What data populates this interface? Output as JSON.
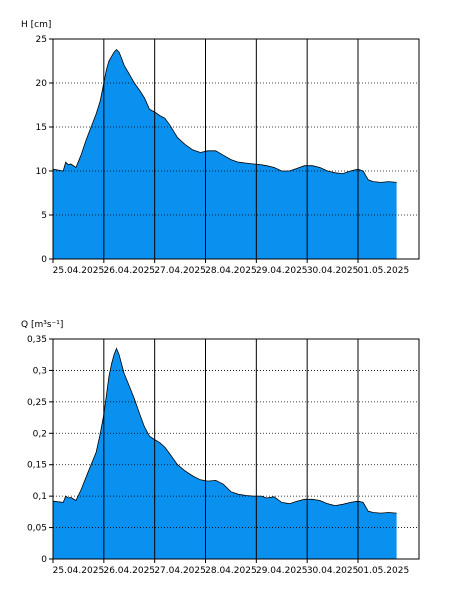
{
  "colors": {
    "fill": "#0a91f0",
    "stroke": "#000000",
    "grid_dotted": "#000000",
    "day_line": "#000000",
    "background": "#ffffff"
  },
  "chart_data": [
    {
      "type": "area",
      "ylabel": "H [cm]",
      "ylim": [
        0,
        25
      ],
      "yticks": [
        0,
        5,
        10,
        15,
        20,
        25
      ],
      "ytick_labels": [
        "0",
        "5",
        "10",
        "15",
        "20",
        "25"
      ],
      "xlim": [
        0,
        7.2
      ],
      "xtick_labels": [
        "25.04.2025",
        "26.04.2025",
        "27.04.2025",
        "28.04.2025",
        "29.04.2025",
        "30.04.2025",
        "01.05.2025"
      ],
      "grid": "dotted horizontal, solid vertical at day boundaries",
      "series": [
        {
          "x": [
            0.0,
            0.2,
            0.25,
            0.3,
            0.35,
            0.45,
            0.55,
            0.65,
            0.75,
            0.85,
            0.93,
            1.0,
            1.05,
            1.1,
            1.15,
            1.2,
            1.25,
            1.3,
            1.35,
            1.4,
            1.5,
            1.6,
            1.7,
            1.8,
            1.9,
            2.0,
            2.1,
            2.2,
            2.3,
            2.45,
            2.6,
            2.75,
            2.9,
            3.05,
            3.2,
            3.35,
            3.5,
            3.65,
            3.8,
            3.95,
            4.1,
            4.2,
            4.35,
            4.5,
            4.65,
            4.8,
            4.95,
            5.1,
            5.25,
            5.4,
            5.55,
            5.7,
            5.85,
            6.0,
            6.1,
            6.2,
            6.3,
            6.45,
            6.6,
            6.76
          ],
          "y": [
            10.2,
            10.0,
            11.0,
            10.7,
            10.8,
            10.4,
            11.8,
            13.5,
            15.0,
            16.5,
            18.0,
            20.0,
            21.5,
            22.5,
            23.0,
            23.5,
            23.8,
            23.5,
            22.8,
            22.0,
            21.0,
            20.0,
            19.2,
            18.3,
            17.0,
            16.7,
            16.3,
            16.0,
            15.2,
            13.8,
            13.0,
            12.4,
            12.1,
            12.3,
            12.3,
            11.8,
            11.3,
            11.0,
            10.9,
            10.8,
            10.7,
            10.6,
            10.4,
            10.0,
            10.0,
            10.3,
            10.6,
            10.6,
            10.4,
            10.0,
            9.8,
            9.7,
            10.0,
            10.2,
            10.0,
            9.0,
            8.8,
            8.7,
            8.8,
            8.7
          ],
          "name": ""
        }
      ]
    },
    {
      "type": "area",
      "ylabel": "Q [m³s⁻¹]",
      "ylim": [
        0,
        0.35
      ],
      "yticks": [
        0,
        0.05,
        0.1,
        0.15,
        0.2,
        0.25,
        0.3,
        0.35
      ],
      "ytick_labels": [
        "0",
        "0,05",
        "0,1",
        "0,15",
        "0,2",
        "0,25",
        "0,3",
        "0,35"
      ],
      "xlim": [
        0,
        7.2
      ],
      "xtick_labels": [
        "25.04.2025",
        "26.04.2025",
        "27.04.2025",
        "28.04.2025",
        "29.04.2025",
        "30.04.2025",
        "01.05.2025"
      ],
      "grid": "dotted horizontal, solid vertical at day boundaries",
      "series": [
        {
          "x": [
            0.0,
            0.2,
            0.25,
            0.3,
            0.35,
            0.45,
            0.55,
            0.65,
            0.75,
            0.85,
            0.93,
            1.0,
            1.05,
            1.1,
            1.15,
            1.2,
            1.25,
            1.3,
            1.35,
            1.4,
            1.5,
            1.6,
            1.7,
            1.8,
            1.9,
            2.0,
            2.1,
            2.2,
            2.3,
            2.45,
            2.6,
            2.75,
            2.9,
            3.05,
            3.2,
            3.35,
            3.5,
            3.65,
            3.8,
            3.95,
            4.1,
            4.2,
            4.35,
            4.5,
            4.65,
            4.8,
            4.95,
            5.1,
            5.25,
            5.4,
            5.55,
            5.7,
            5.85,
            6.0,
            6.1,
            6.2,
            6.3,
            6.45,
            6.6,
            6.76
          ],
          "y": [
            0.092,
            0.09,
            0.1,
            0.097,
            0.098,
            0.093,
            0.11,
            0.13,
            0.15,
            0.17,
            0.2,
            0.23,
            0.26,
            0.29,
            0.31,
            0.325,
            0.335,
            0.325,
            0.31,
            0.295,
            0.275,
            0.255,
            0.232,
            0.21,
            0.195,
            0.19,
            0.185,
            0.178,
            0.167,
            0.15,
            0.14,
            0.132,
            0.126,
            0.124,
            0.125,
            0.119,
            0.107,
            0.103,
            0.101,
            0.1,
            0.1,
            0.097,
            0.099,
            0.09,
            0.088,
            0.092,
            0.095,
            0.095,
            0.093,
            0.088,
            0.085,
            0.087,
            0.09,
            0.092,
            0.09,
            0.076,
            0.074,
            0.073,
            0.074,
            0.073
          ],
          "name": ""
        }
      ]
    }
  ]
}
